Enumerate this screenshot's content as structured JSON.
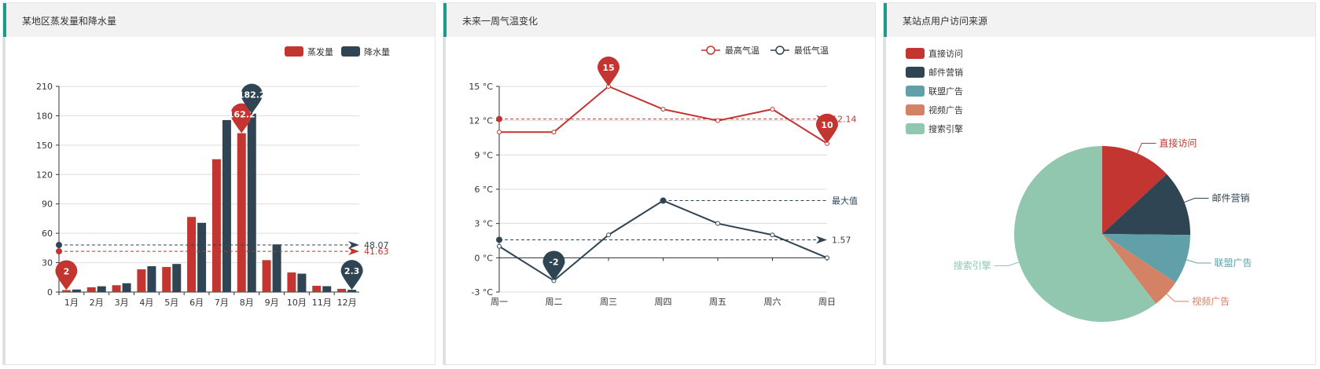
{
  "panels": [
    {
      "title": "某地区蒸发量和降水量"
    },
    {
      "title": "未来一周气温变化"
    },
    {
      "title": "某站点用户访问来源"
    }
  ],
  "colors": {
    "red": "#c23531",
    "navy": "#2f4554",
    "teal": "#61a0a8",
    "orange": "#d48265",
    "green": "#91c7ae",
    "accent": "#1d9b8a"
  },
  "chart_data": [
    {
      "type": "bar",
      "title": "某地区蒸发量和降水量",
      "categories": [
        "1月",
        "2月",
        "3月",
        "4月",
        "5月",
        "6月",
        "7月",
        "8月",
        "9月",
        "10月",
        "11月",
        "12月"
      ],
      "series": [
        {
          "name": "蒸发量",
          "color": "#c23531",
          "values": [
            2.0,
            4.9,
            7.0,
            23.2,
            25.6,
            76.7,
            135.6,
            162.2,
            32.6,
            20.0,
            6.4,
            3.3
          ],
          "mark_max": "162.2",
          "mark_min": "2",
          "mean_label": "41.63"
        },
        {
          "name": "降水量",
          "color": "#2f4554",
          "values": [
            2.6,
            5.9,
            9.0,
            26.4,
            28.7,
            70.7,
            175.6,
            182.2,
            48.7,
            18.8,
            6.0,
            2.3
          ],
          "mark_max": "182.2",
          "mark_min": "2.3",
          "mean_label": "48.07"
        }
      ],
      "y_ticks": [
        "0",
        "30",
        "60",
        "90",
        "120",
        "150",
        "180",
        "210"
      ],
      "ylim": [
        0,
        210
      ],
      "legend_position": "top-right",
      "grid": true
    },
    {
      "type": "line",
      "title": "未来一周气温变化",
      "categories": [
        "周一",
        "周二",
        "周三",
        "周四",
        "周五",
        "周六",
        "周日"
      ],
      "series": [
        {
          "name": "最高气温",
          "color": "#c23531",
          "values": [
            11,
            11,
            15,
            13,
            12,
            13,
            10
          ],
          "mark_max": "15",
          "mark_min": "10",
          "avg_label": "12.14"
        },
        {
          "name": "最低气温",
          "color": "#2f4554",
          "values": [
            1,
            -2,
            2,
            5,
            3,
            2,
            0
          ],
          "mark_min": "-2",
          "max_label": "最大值",
          "avg_label": "1.57"
        }
      ],
      "y_ticks": [
        "-3 °C",
        "0 °C",
        "3 °C",
        "6 °C",
        "9 °C",
        "12 °C",
        "15 °C"
      ],
      "ylim": [
        -3,
        15
      ],
      "legend_position": "top-right",
      "grid": true
    },
    {
      "type": "pie",
      "title": "某站点用户访问来源",
      "slices": [
        {
          "name": "直接访问",
          "value": 335,
          "color": "#c23531"
        },
        {
          "name": "邮件营销",
          "value": 310,
          "color": "#2f4554"
        },
        {
          "name": "联盟广告",
          "value": 234,
          "color": "#61a0a8"
        },
        {
          "name": "视频广告",
          "value": 135,
          "color": "#d48265"
        },
        {
          "name": "搜索引擎",
          "value": 1548,
          "color": "#91c7ae"
        }
      ],
      "legend_position": "top-left"
    }
  ]
}
